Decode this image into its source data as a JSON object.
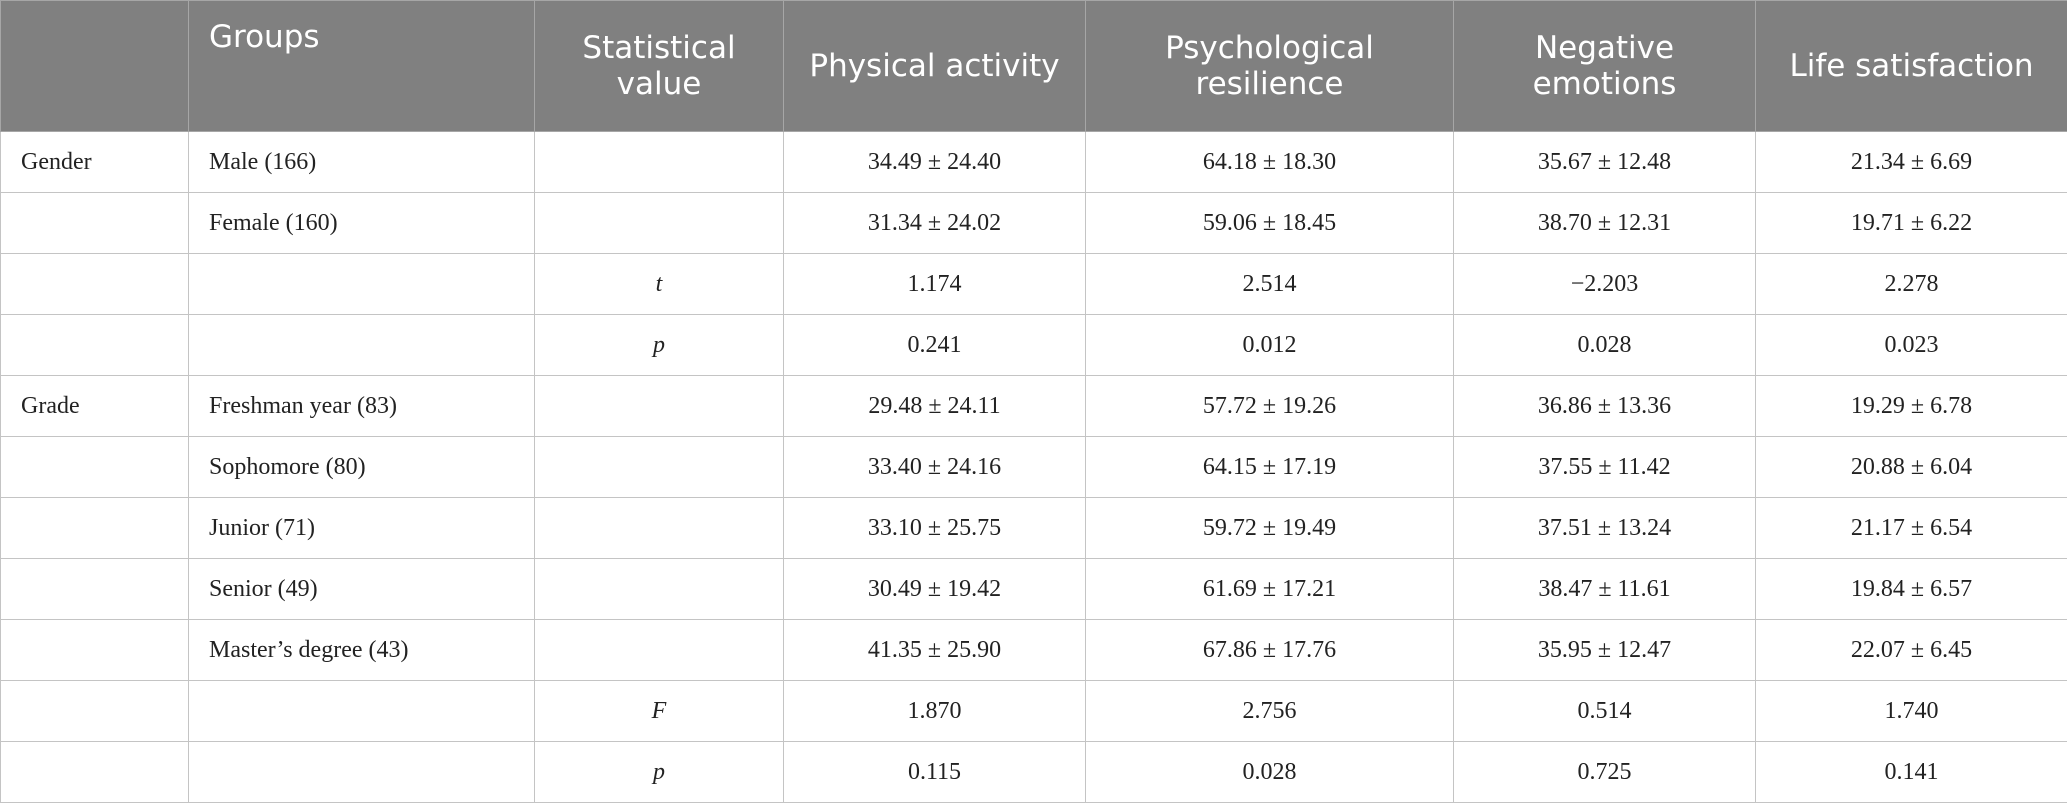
{
  "table": {
    "columns": [
      "Groups",
      "Statistical value",
      "Physical activity",
      "Psychological resilience",
      "Negative emotions",
      "Life satisfaction"
    ],
    "rows": [
      {
        "category": "Gender",
        "group": "Male (166)",
        "values": [
          "34.49 ± 24.40",
          "64.18 ± 18.30",
          "35.67 ± 12.48",
          "21.34 ± 6.69"
        ]
      },
      {
        "group": "Female (160)",
        "values": [
          "31.34 ± 24.02",
          "59.06 ± 18.45",
          "38.70 ± 12.31",
          "19.71 ± 6.22"
        ]
      },
      {
        "stat": "t",
        "values": [
          "1.174",
          "2.514",
          "−2.203",
          "2.278"
        ]
      },
      {
        "stat": "p",
        "values": [
          "0.241",
          "0.012",
          "0.028",
          "0.023"
        ]
      },
      {
        "category": "Grade",
        "group": "Freshman year (83)",
        "values": [
          "29.48 ± 24.11",
          "57.72 ± 19.26",
          "36.86 ± 13.36",
          "19.29 ± 6.78"
        ]
      },
      {
        "group": "Sophomore (80)",
        "values": [
          "33.40 ± 24.16",
          "64.15 ± 17.19",
          "37.55 ± 11.42",
          "20.88 ± 6.04"
        ]
      },
      {
        "group": "Junior (71)",
        "values": [
          "33.10 ± 25.75",
          "59.72 ± 19.49",
          "37.51 ± 13.24",
          "21.17 ± 6.54"
        ]
      },
      {
        "group": "Senior (49)",
        "values": [
          "30.49 ± 19.42",
          "61.69 ± 17.21",
          "38.47 ± 11.61",
          "19.84 ± 6.57"
        ]
      },
      {
        "group": "Master’s degree (43)",
        "values": [
          "41.35 ± 25.90",
          "67.86 ± 17.76",
          "35.95 ± 12.47",
          "22.07 ± 6.45"
        ]
      },
      {
        "stat": "F",
        "values": [
          "1.870",
          "2.756",
          "0.514",
          "1.740"
        ]
      },
      {
        "stat": "p",
        "values": [
          "0.115",
          "0.028",
          "0.725",
          "0.141"
        ]
      }
    ]
  }
}
